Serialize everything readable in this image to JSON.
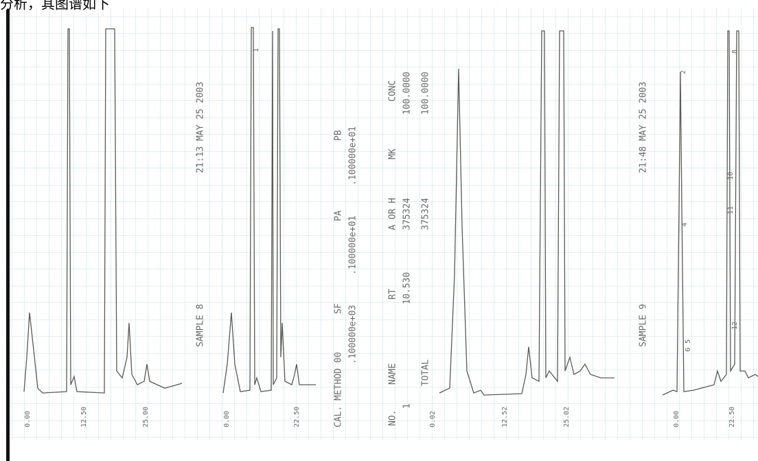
{
  "caption": "分析，其图谱如下",
  "runs": [
    {
      "sample": "SAMPLE   8",
      "timestamp": "21:13   MAY   25 2003",
      "axis": [
        "0.00",
        "12.50",
        "25.00"
      ],
      "peaks": [
        "1"
      ]
    },
    {
      "axis": [
        "0.00",
        "22.50"
      ]
    },
    {
      "axis": [
        "0.02",
        "12.52",
        "25.02"
      ]
    },
    {
      "sample": "SAMPLE   9",
      "timestamp": "21:48   MAY   25 2003",
      "axis": [
        "0.00",
        "22.50"
      ],
      "peaks": [
        "2",
        "4",
        "10",
        "11",
        "12",
        "8",
        "6 5"
      ]
    }
  ],
  "report": {
    "method": "CAL. METHOD   00",
    "params": [
      {
        "name": "SF",
        "value": ".100000e+03"
      },
      {
        "name": "PA",
        "value": ".100000e+01"
      },
      {
        "name": "PB",
        "value": ".100000e+01"
      }
    ],
    "columns": [
      "NO.",
      "NAME",
      "RT",
      "A OR H",
      "MK",
      "CONC"
    ],
    "row": {
      "no": "1",
      "rt": "10.530",
      "area": "375324",
      "conc": "100.0000"
    },
    "total": {
      "label": "TOTAL",
      "area": "375324",
      "conc": "100.0000"
    }
  }
}
